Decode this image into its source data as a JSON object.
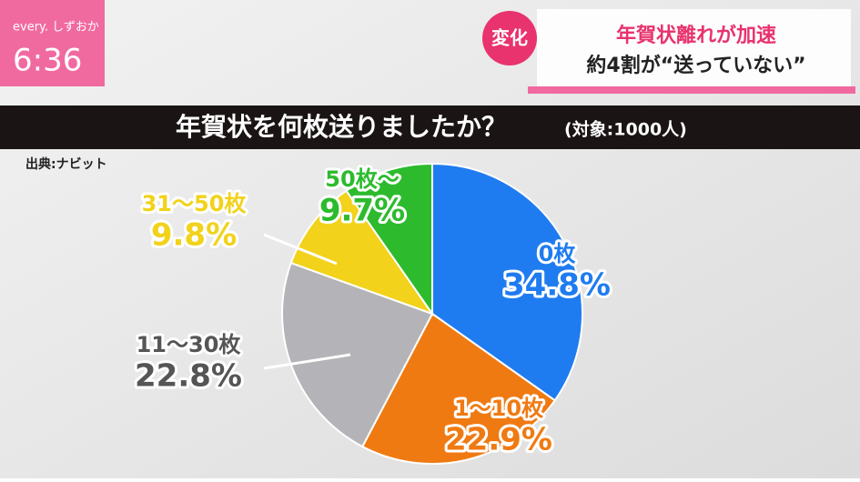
{
  "broadcast": {
    "program": "every. しずおか",
    "time": "6:36",
    "tag": "変化",
    "headline": [
      "年賀状離れが加速",
      "約4割が“送っていない”"
    ]
  },
  "chart_data": {
    "type": "pie",
    "title": "年賀状を何枚送りましたか？",
    "subtitle": "(対象:1000人)",
    "source": "出典:ナビット",
    "categories": [
      "0枚",
      "1〜10枚",
      "11〜30枚",
      "31〜50枚",
      "50枚〜"
    ],
    "values": [
      34.8,
      22.9,
      22.8,
      9.8,
      9.7
    ],
    "value_labels": [
      "34.8%",
      "22.9%",
      "22.8%",
      "9.8%",
      "9.7%"
    ],
    "colors": [
      "#1f7cf0",
      "#f07a12",
      "#b4b4b8",
      "#f2d21a",
      "#2dbb2d"
    ]
  }
}
